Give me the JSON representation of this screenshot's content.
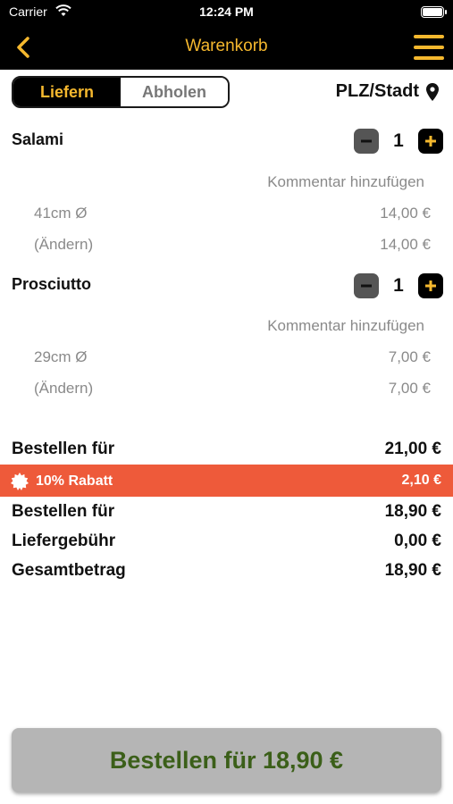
{
  "status_bar": {
    "carrier": "Carrier",
    "time": "12:24 PM"
  },
  "nav": {
    "title": "Warenkorb",
    "accent_color": "#f5b82e"
  },
  "mode_toggle": {
    "options": [
      "Liefern",
      "Abholen"
    ],
    "selected": "Liefern"
  },
  "location_label": "PLZ/Stadt",
  "cart": {
    "items": [
      {
        "name": "Salami",
        "quantity": "1",
        "comment_label": "Kommentar hinzufügen",
        "size": "41cm Ø",
        "size_price": "14,00 €",
        "change_label": "(Ändern)",
        "change_price": "14,00 €"
      },
      {
        "name": "Prosciutto",
        "quantity": "1",
        "comment_label": "Kommentar hinzufügen",
        "size": "29cm Ø",
        "size_price": "7,00 €",
        "change_label": "(Ändern)",
        "change_price": "7,00 €"
      }
    ]
  },
  "summary": {
    "subtotal_label": "Bestellen für",
    "subtotal_value": "21,00 €",
    "discount_label": "10% Rabatt",
    "discount_value": "2,10 €",
    "discount_color": "#ee5a3a",
    "after_discount_label": "Bestellen für",
    "after_discount_value": "18,90 €",
    "delivery_label": "Liefergebühr",
    "delivery_value": "0,00 €",
    "total_label": "Gesamtbetrag",
    "total_value": "18,90 €"
  },
  "order_button": {
    "label": "Bestellen für 18,90 €"
  }
}
